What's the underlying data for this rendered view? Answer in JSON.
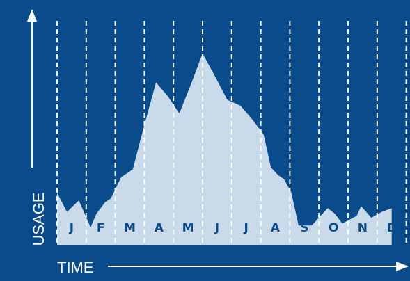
{
  "chart_data": {
    "type": "area",
    "xlabel": "TIME",
    "ylabel": "USAGE",
    "categories": [
      "J",
      "F",
      "M",
      "A",
      "M",
      "J",
      "J",
      "A",
      "S",
      "O",
      "N",
      "D"
    ],
    "x": [
      0,
      0.34,
      0.75,
      1.15,
      1.35,
      1.65,
      1.85,
      2.2,
      2.6,
      3.0,
      3.4,
      3.8,
      4.2,
      4.6,
      5.0,
      5.4,
      5.85,
      6.3,
      6.7,
      7.1,
      7.35,
      7.6,
      7.8,
      8.05,
      8.3,
      8.75,
      9.3,
      9.55,
      9.8,
      10.3,
      10.45,
      10.8,
      11.15,
      11.5
    ],
    "values": [
      27,
      17,
      23,
      9,
      16,
      22,
      24,
      35,
      39,
      62,
      84,
      77,
      68,
      83,
      99,
      88,
      75,
      72,
      65,
      57,
      40,
      36,
      34,
      27,
      10,
      10,
      19,
      16,
      11,
      15,
      20,
      14,
      17,
      19
    ],
    "ylim": [
      0,
      100
    ],
    "grid": true,
    "colors": {
      "background": "#0a4b8c",
      "area": "#c9dbea",
      "month_label": "#0a4b8c",
      "axis": "#ffffff",
      "grid": "#ffffff"
    }
  }
}
